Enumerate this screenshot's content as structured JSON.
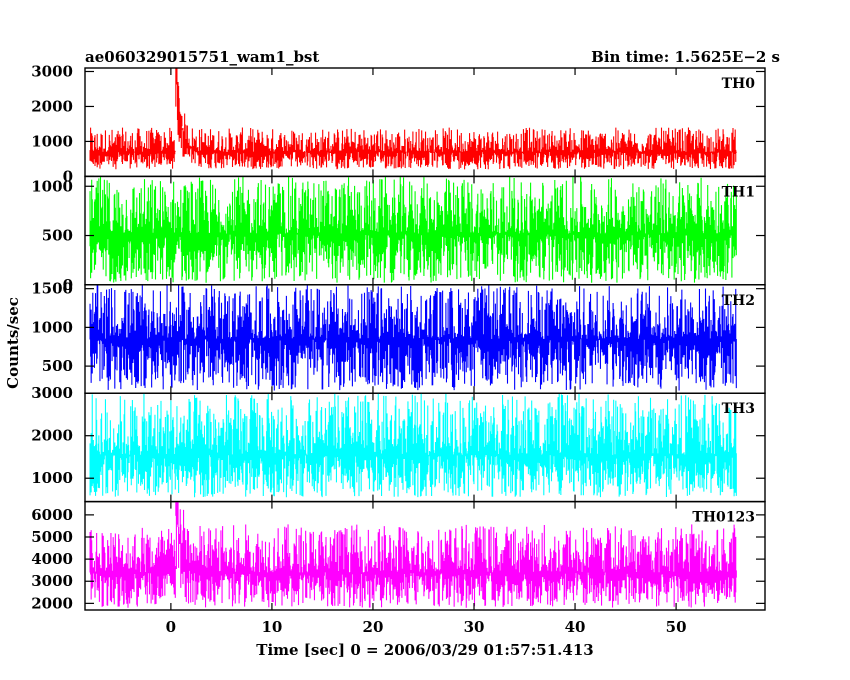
{
  "chart_data": {
    "type": "line",
    "title": "ae060329015751_wam1_bst",
    "subtitle": "Bin time: 1.5625E−2 s",
    "xlabel": "Time [sec] 0 = 2006/03/29 01:57:51.413",
    "ylabel": "Counts/sec",
    "xlim": [
      -8.5,
      58.8
    ],
    "x_ticks": [
      0,
      10,
      20,
      30,
      40,
      50
    ],
    "x_tick_labels": [
      "0",
      "10",
      "20",
      "30",
      "40",
      "50"
    ],
    "x_data_range": [
      -8,
      56
    ],
    "grid": false,
    "panels": [
      {
        "band": "TH0",
        "color": "#ff0000",
        "ylim": [
          0,
          3100
        ],
        "y_ticks": [
          0,
          1000,
          2000,
          3000
        ],
        "y_tick_labels": [
          "0",
          "1000",
          "2000",
          "3000"
        ],
        "baseline": 700,
        "noise_low": 200,
        "noise_high": 1400,
        "burst": {
          "t": 0.5,
          "peak": 3100,
          "decay": 0.5
        }
      },
      {
        "band": "TH1",
        "color": "#00ff00",
        "ylim": [
          0,
          1100
        ],
        "y_ticks": [
          0,
          500,
          1000
        ],
        "y_tick_labels": [
          "0",
          "500",
          "1000"
        ],
        "baseline": 520,
        "noise_low": 20,
        "noise_high": 1100
      },
      {
        "band": "TH2",
        "color": "#0000ff",
        "ylim": [
          150,
          1550
        ],
        "y_ticks": [
          500,
          1000,
          1500
        ],
        "y_tick_labels": [
          "500",
          "1000",
          "1500"
        ],
        "baseline": 850,
        "noise_low": 180,
        "noise_high": 1550
      },
      {
        "band": "TH3",
        "color": "#00ffff",
        "ylim": [
          450,
          3000
        ],
        "y_ticks": [
          1000,
          2000,
          3000
        ],
        "y_tick_labels": [
          "1000",
          "2000",
          "3000"
        ],
        "baseline": 1550,
        "noise_low": 550,
        "noise_high": 3000
      },
      {
        "band": "TH0123",
        "color": "#ff00ff",
        "ylim": [
          1700,
          6600
        ],
        "y_ticks": [
          2000,
          3000,
          4000,
          5000,
          6000
        ],
        "y_tick_labels": [
          "2000",
          "3000",
          "4000",
          "5000",
          "6000"
        ],
        "baseline": 3400,
        "noise_low": 1800,
        "noise_high": 5600,
        "burst": {
          "t": 0.5,
          "peak": 6600,
          "decay": 0.5
        }
      }
    ]
  }
}
